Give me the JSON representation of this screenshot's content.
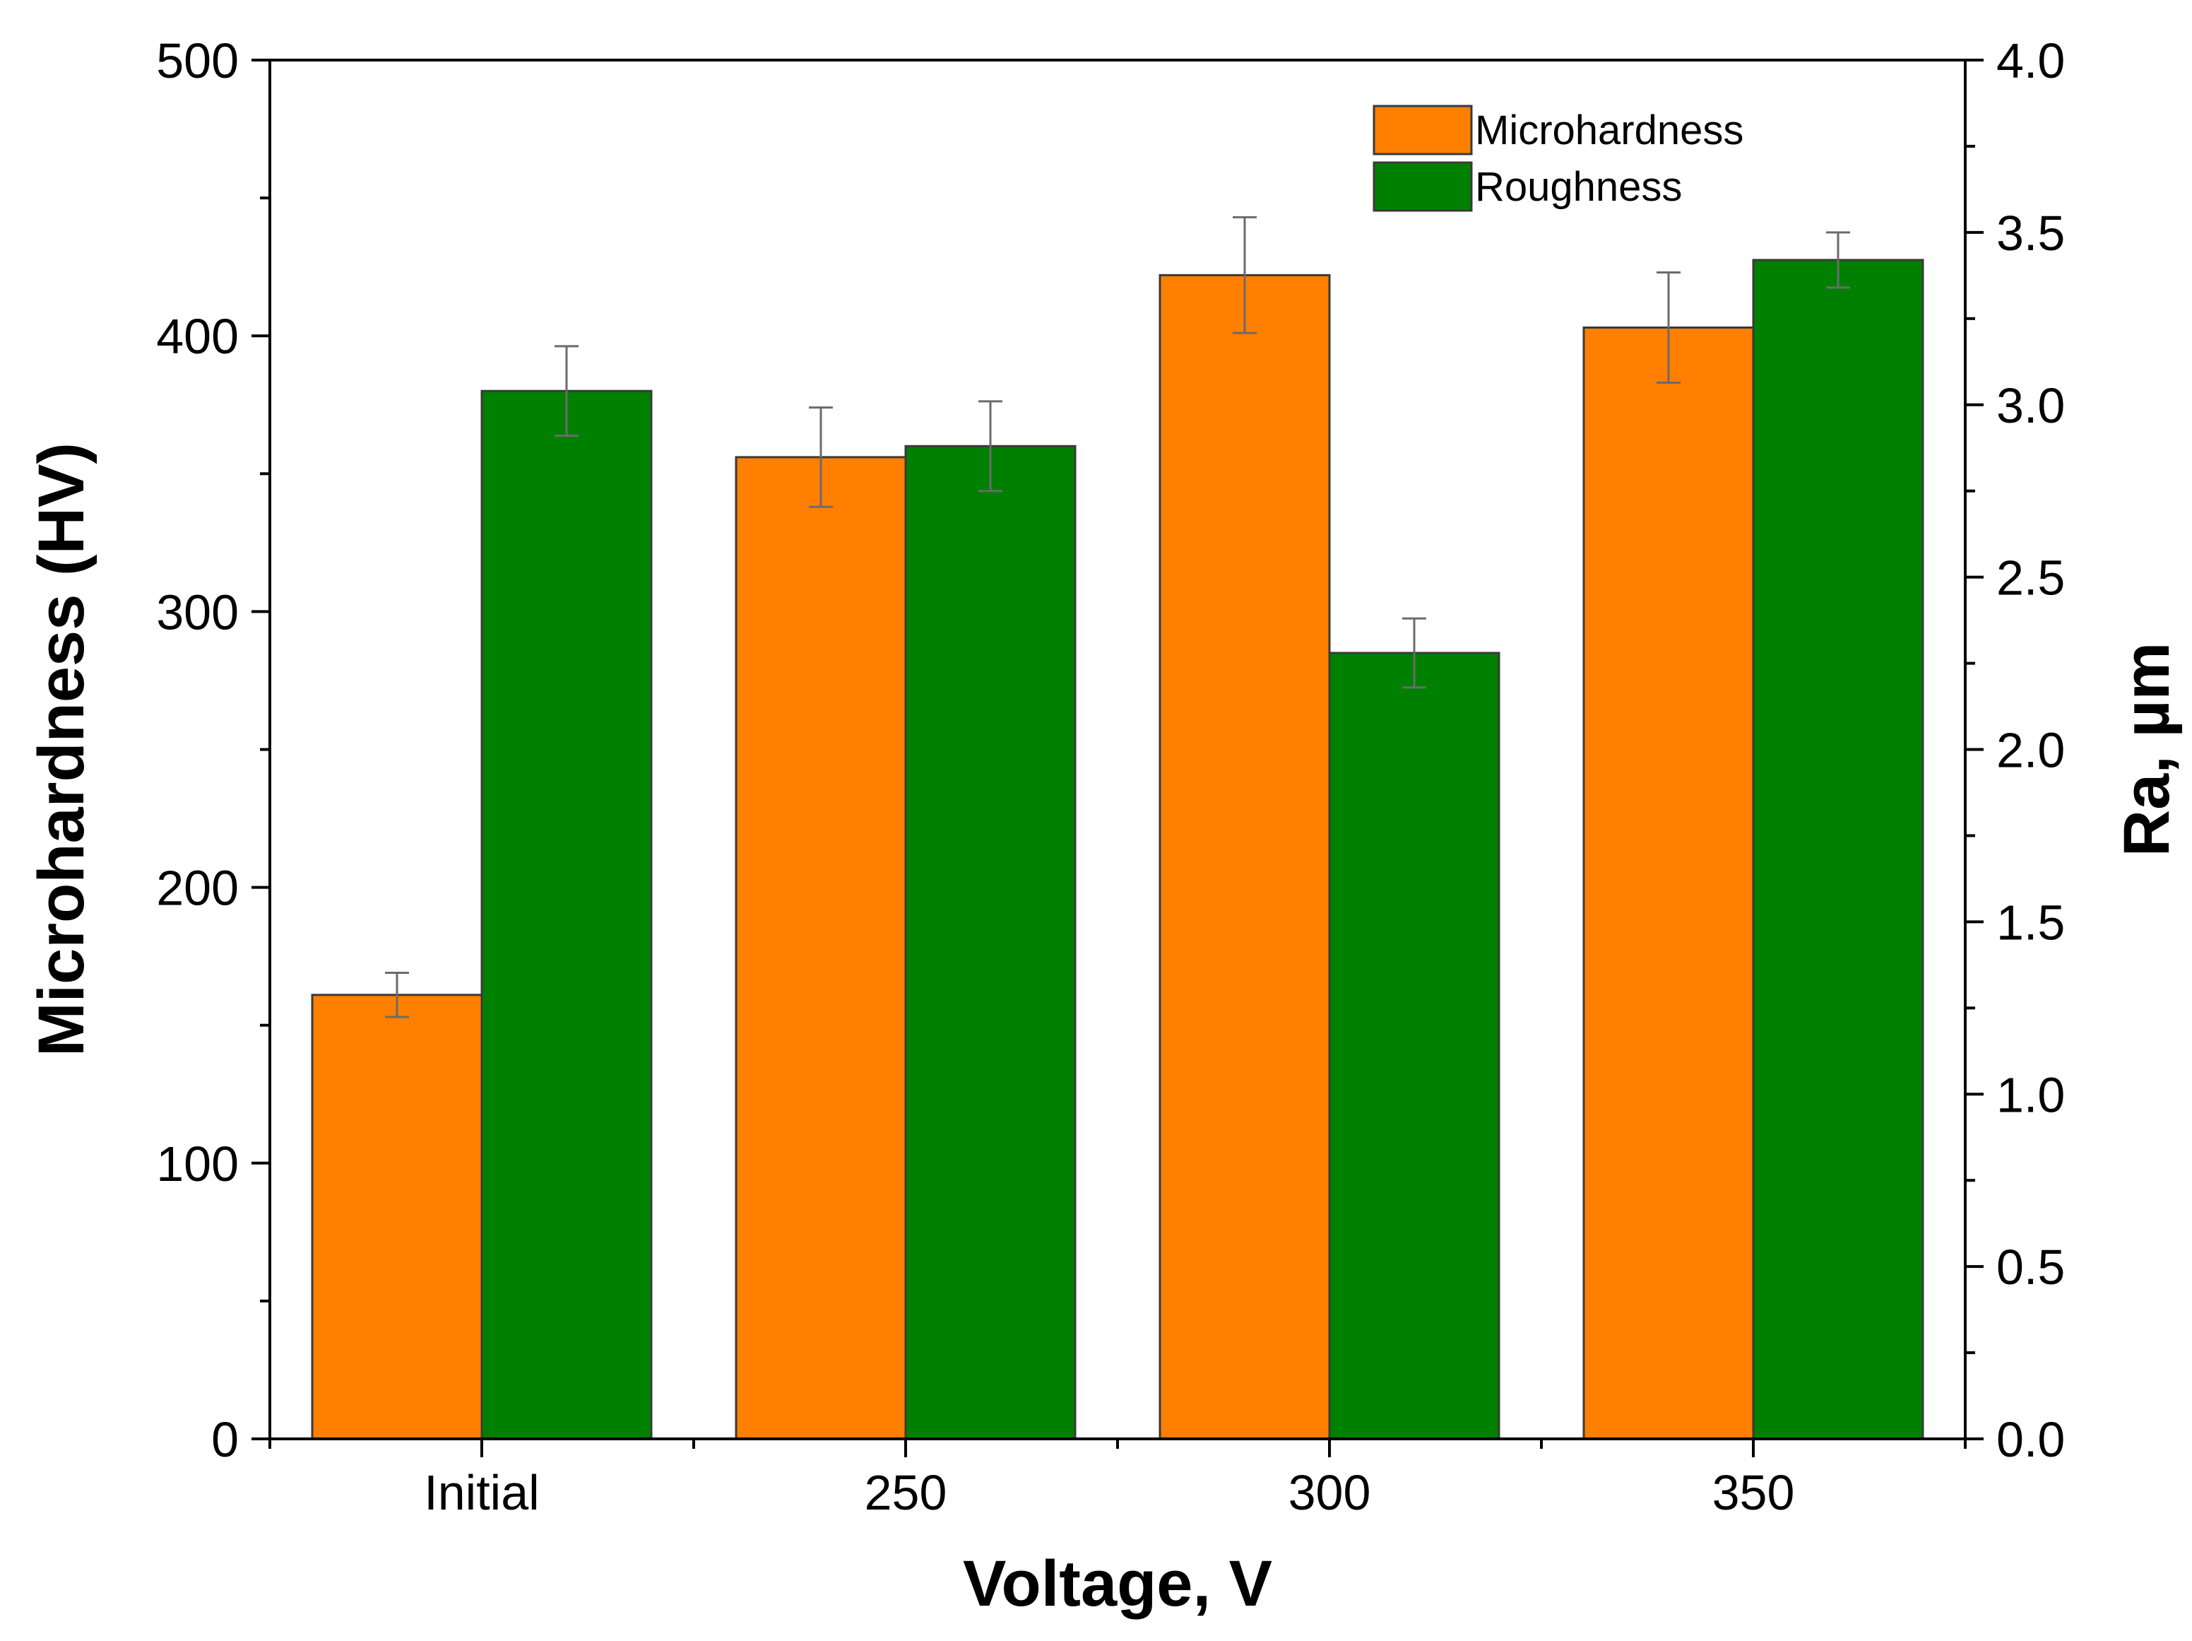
{
  "chart_data": {
    "type": "bar",
    "title": "",
    "xlabel": "Voltage, V",
    "ylabel": "Microhardness (HV)",
    "y2label": "Ra, µm",
    "categories": [
      "Initial",
      "250",
      "300",
      "350"
    ],
    "ylim": [
      0,
      500
    ],
    "y2lim": [
      0,
      4.0
    ],
    "yticks": [
      "0",
      "100",
      "200",
      "300",
      "400",
      "500"
    ],
    "y2ticks": [
      "0.0",
      "0.5",
      "1.0",
      "1.5",
      "2.0",
      "2.5",
      "3.0",
      "3.5",
      "4.0"
    ],
    "legend_position": "top-right",
    "series": [
      {
        "name": "Microhardness",
        "axis": "left",
        "color": "#ff7f00",
        "values": [
          161,
          356,
          422,
          403
        ],
        "errors": [
          8,
          18,
          21,
          20
        ]
      },
      {
        "name": "Roughness",
        "axis": "right",
        "color": "#008000",
        "values": [
          3.04,
          2.88,
          2.28,
          3.42
        ],
        "errors": [
          0.13,
          0.13,
          0.1,
          0.08
        ]
      }
    ]
  }
}
